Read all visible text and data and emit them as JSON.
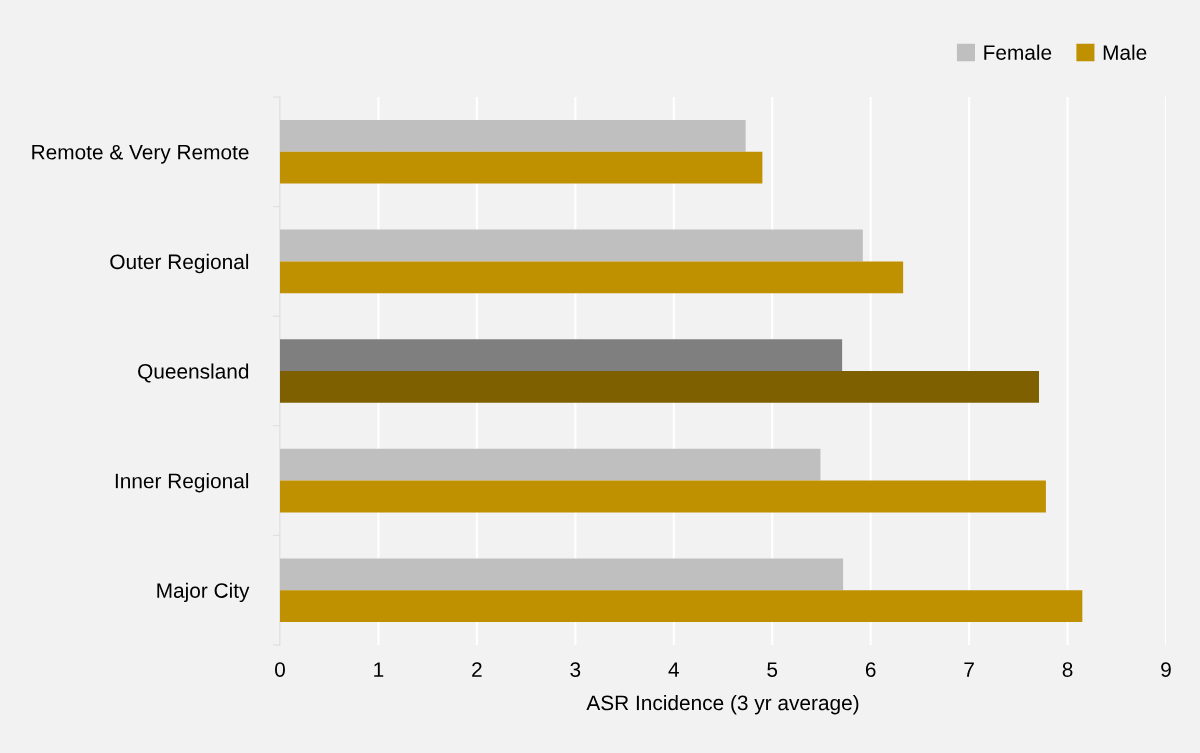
{
  "chart_data": {
    "type": "bar",
    "orientation": "horizontal",
    "xlabel": "ASR Incidence (3 yr average)",
    "categories": [
      "Remote & Very Remote",
      "Outer Regional",
      "Queensland",
      "Inner Regional",
      "Major City"
    ],
    "series": [
      {
        "name": "Female",
        "color": "#bfbfbf",
        "colors": [
          "#bfbfbf",
          "#bfbfbf",
          "#7f7f7f",
          "#bfbfbf",
          "#bfbfbf"
        ],
        "values": [
          4.73,
          5.92,
          5.71,
          5.49,
          5.72
        ]
      },
      {
        "name": "Male",
        "color": "#bf9000",
        "colors": [
          "#bf9000",
          "#bf9000",
          "#7f6000",
          "#bf9000",
          "#bf9000"
        ],
        "values": [
          4.9,
          6.33,
          7.71,
          7.78,
          8.15
        ]
      }
    ],
    "xlim": [
      0,
      9
    ],
    "xticks": [
      0,
      1,
      2,
      3,
      4,
      5,
      6,
      7,
      8,
      9
    ],
    "grid": "x",
    "legend": "top right"
  }
}
